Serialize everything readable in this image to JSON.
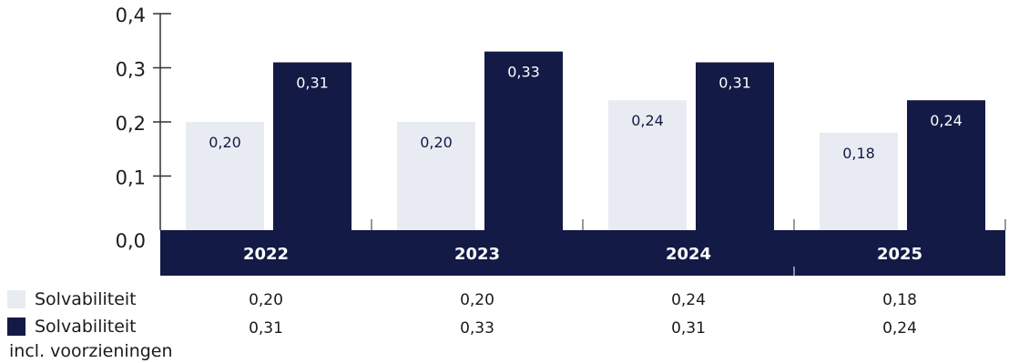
{
  "colors": {
    "light": "#e8ecf2",
    "dark": "#131a45",
    "axis": "#333333"
  },
  "chart_data": {
    "type": "bar",
    "categories": [
      "2022",
      "2023",
      "2024",
      "2025"
    ],
    "series": [
      {
        "name": "Solvabiliteit",
        "values": [
          0.2,
          0.2,
          0.24,
          0.18
        ],
        "labels": [
          "0,20",
          "0,20",
          "0,24",
          "0,18"
        ]
      },
      {
        "name": "Solvabiliteit incl. voorzieningen",
        "legend_lines": [
          "Solvabiliteit",
          "incl. voorzieningen"
        ],
        "values": [
          0.31,
          0.33,
          0.31,
          0.24
        ],
        "labels": [
          "0,31",
          "0,33",
          "0,31",
          "0,24"
        ]
      }
    ],
    "ylim": [
      0,
      0.4
    ],
    "yticks": [
      0,
      0.1,
      0.2,
      0.3,
      0.4
    ],
    "ytick_labels": [
      "0,0",
      "0,1",
      "0,2",
      "0,3",
      "0,4"
    ],
    "title": "",
    "xlabel": "",
    "ylabel": "",
    "grid": false,
    "legend": "bottom-left"
  }
}
